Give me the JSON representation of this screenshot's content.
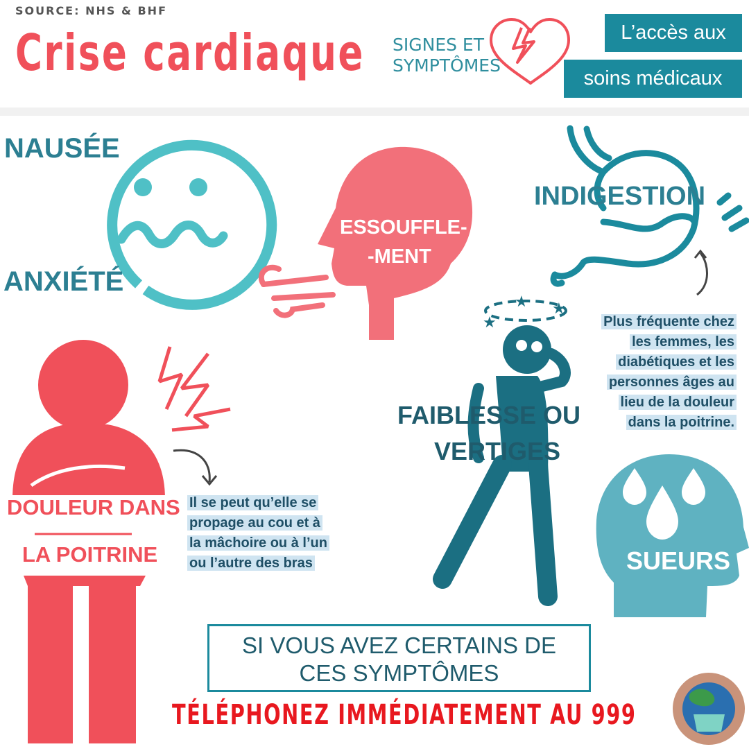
{
  "header": {
    "source": "SOURCE: NHS & BHF",
    "title": "Crise cardiaque",
    "subtitle": "SIGNES ET\nSYMPTÔMES",
    "access_line1": "L’accès aux",
    "access_line2": "soins médicaux"
  },
  "symptoms": {
    "nausea": "NAUSÉE",
    "anxiety": "ANXIÉTÉ",
    "breathless_1": "ESSOUFFLE-",
    "breathless_2": "-MENT",
    "indigestion": "INDIGESTION",
    "weakness_1": "FAIBLESSE OU",
    "weakness_2": "VERTIGES",
    "chest_1": "DOULEUR DANS",
    "chest_2": "LA POITRINE",
    "sweat": "SUEURS"
  },
  "notes": {
    "women": [
      "Plus fréquente chez",
      "les femmes, les",
      "diabétiques et les",
      "personnes âges au",
      "lieu de la douleur",
      "dans la poitrine."
    ],
    "spread": [
      "Il se peut qu’elle se",
      "propage au cou et à",
      "la mâchoire ou à l’un",
      "ou l’autre des bras"
    ]
  },
  "cta": {
    "line1": "SI VOUS AVEZ CERTAINS DE",
    "line2": "CES SYMPTÔMES",
    "call": "TÉLÉPHONEZ IMMÉDIATEMENT AU 999"
  },
  "colors": {
    "red": "#f0505a",
    "teal": "#1b8a9d",
    "light_teal": "#4fc0c6",
    "dark_teal": "#1f6e85"
  },
  "icons": [
    "broken-heart-icon",
    "nausea-face-icon",
    "breath-head-icon",
    "stomach-icon",
    "dizzy-person-icon",
    "chest-pain-person-icon",
    "sweat-head-icon",
    "globe-mask-icon"
  ]
}
